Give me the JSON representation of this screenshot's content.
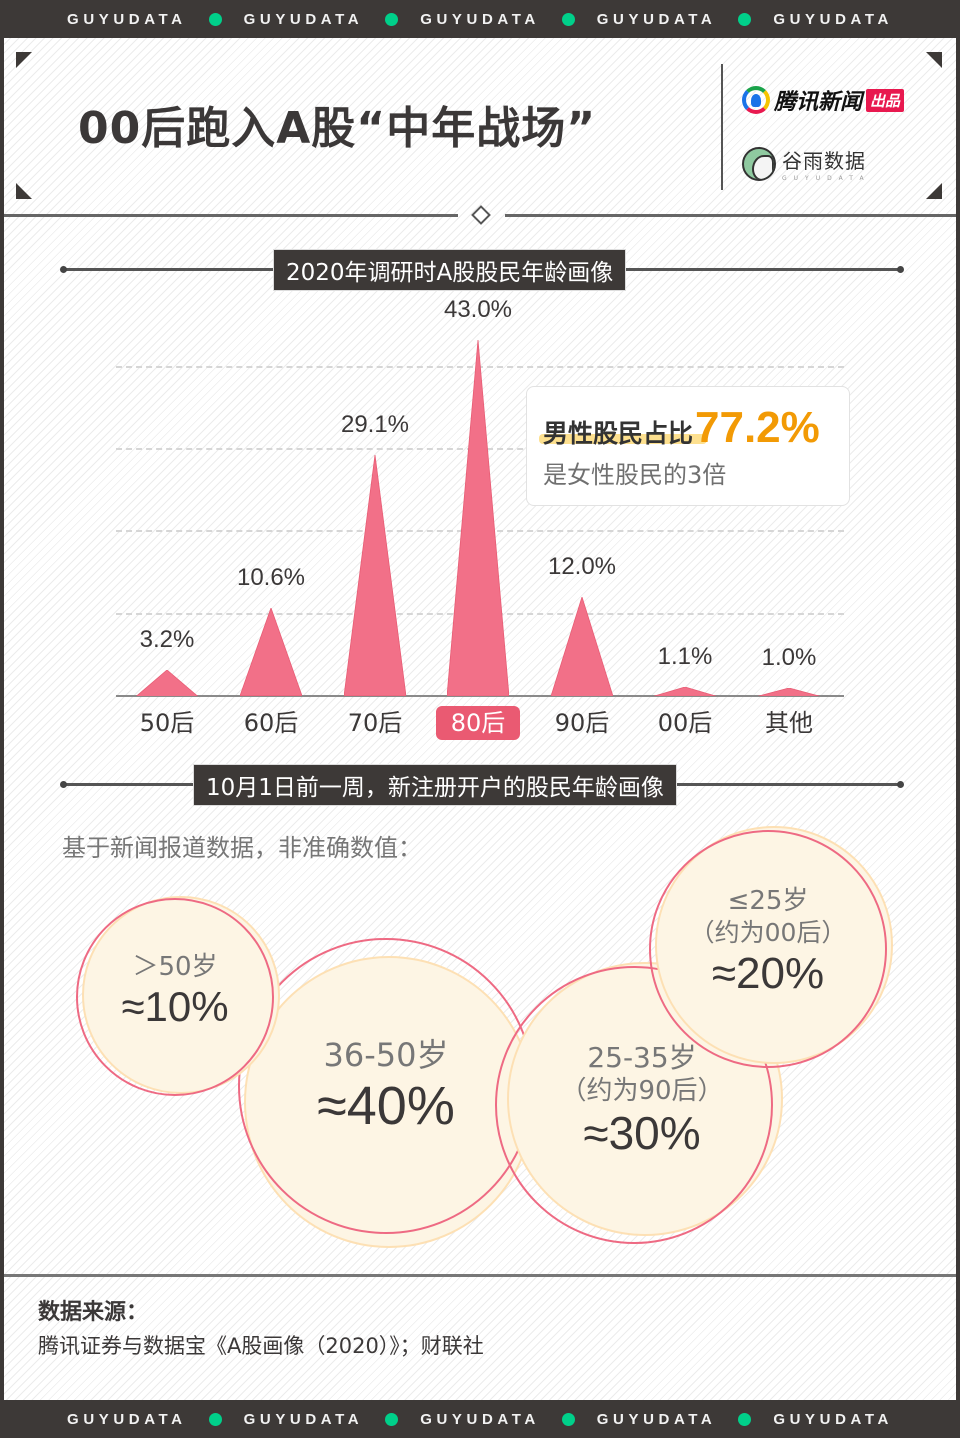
{
  "banner": {
    "word": "GUYUDATA",
    "repeat": 5,
    "dot_color": "#00d08a"
  },
  "header": {
    "title": "00后跑入A股“中年战场”",
    "logo_primary": {
      "icon": "tencent-news-icon",
      "name": "腾讯新闻",
      "badge": "出品"
    },
    "logo_secondary": {
      "icon": "guyu-bird-icon",
      "name": "谷雨数据",
      "sub": "GUYUDATA"
    }
  },
  "section1": {
    "title": "2020年调研时A股股民年龄画像"
  },
  "chart_data": {
    "type": "bar",
    "title": "2020年调研时A股股民年龄画像",
    "xlabel": "",
    "ylabel": "",
    "ylim": [
      0,
      45
    ],
    "grid": true,
    "categories": [
      "50后",
      "60后",
      "70后",
      "80后",
      "90后",
      "00后",
      "其他"
    ],
    "values": [
      3.2,
      10.6,
      29.1,
      43.0,
      12.0,
      1.1,
      1.0
    ],
    "value_labels": [
      "3.2%",
      "10.6%",
      "29.1%",
      "43.0%",
      "12.0%",
      "1.1%",
      "1.0%"
    ],
    "highlight_category": "80后",
    "bar_color": "#f27088",
    "highlight_color": "#ea5a72",
    "annotation": {
      "label": "男性股民占比",
      "value": "77.2%",
      "sub": "是女性股民的3倍",
      "value_color": "#f29a05"
    }
  },
  "section2": {
    "title": "10月1日前一周，新注册开户的股民年龄画像",
    "note": "基于新闻报道数据，非准确数值：",
    "bubbles": [
      {
        "age": "＞50岁",
        "sub": "",
        "value": "≈10%"
      },
      {
        "age": "36-50岁",
        "sub": "",
        "value": "≈40%"
      },
      {
        "age": "25-35岁",
        "sub": "（约为90后）",
        "value": "≈30%"
      },
      {
        "age": "≤25岁",
        "sub": "（约为00后）",
        "value": "≈20%"
      }
    ]
  },
  "footer": {
    "source_title": "数据来源：",
    "source_text": "腾讯证券与数据宝《A股画像（2020）》；财联社"
  }
}
